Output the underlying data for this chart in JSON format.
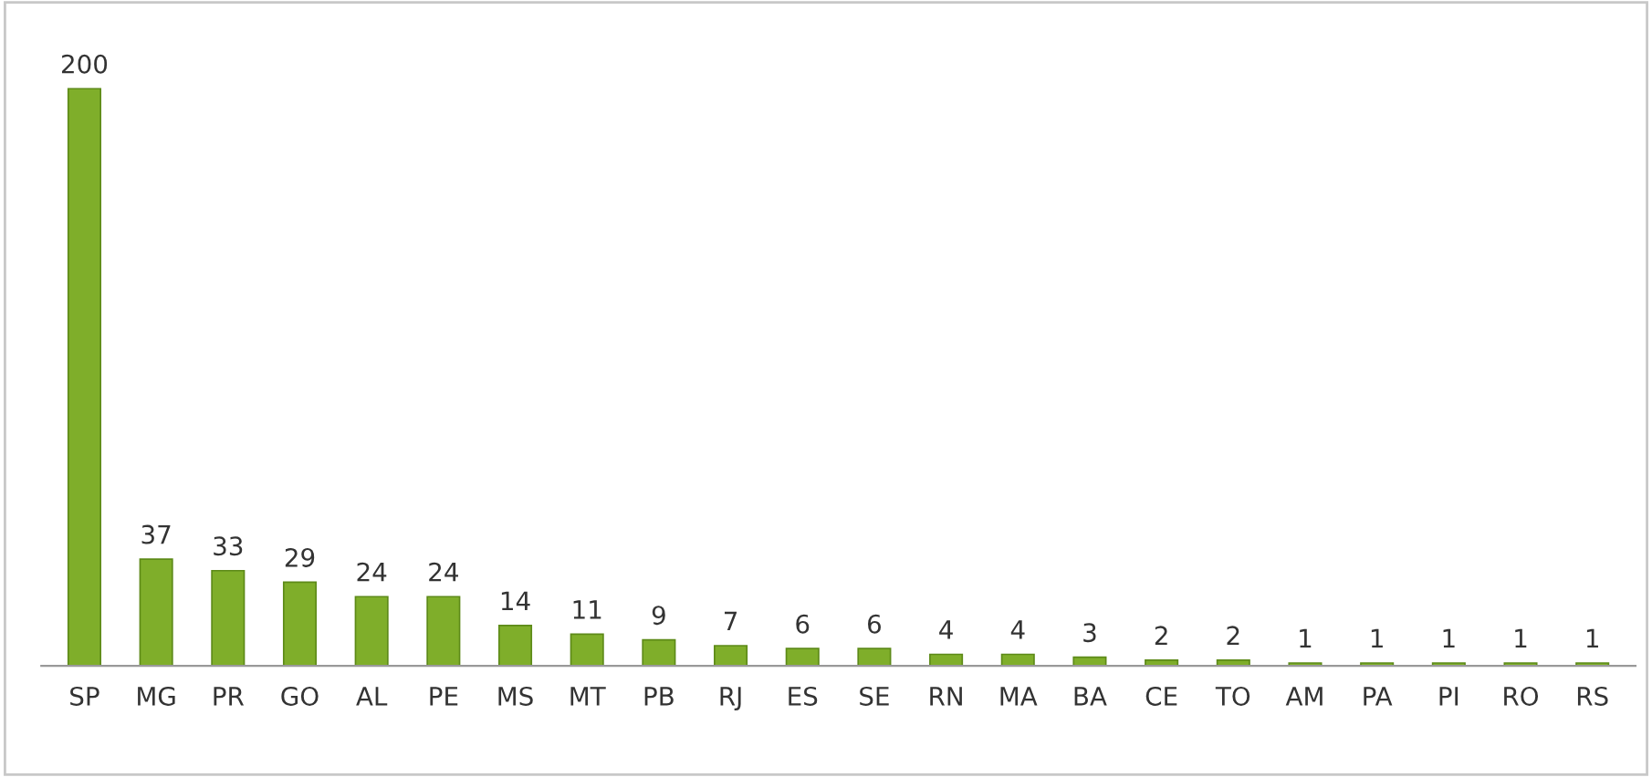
{
  "chart_data": {
    "type": "bar",
    "categories": [
      "SP",
      "MG",
      "PR",
      "GO",
      "AL",
      "PE",
      "MS",
      "MT",
      "PB",
      "RJ",
      "ES",
      "SE",
      "RN",
      "MA",
      "BA",
      "CE",
      "TO",
      "AM",
      "PA",
      "PI",
      "RO",
      "RS"
    ],
    "values": [
      200,
      37,
      33,
      29,
      24,
      24,
      14,
      11,
      9,
      7,
      6,
      6,
      4,
      4,
      3,
      2,
      2,
      1,
      1,
      1,
      1,
      1
    ],
    "color": "#7fae2a",
    "data_labels": true,
    "grid": false,
    "legend": false
  }
}
